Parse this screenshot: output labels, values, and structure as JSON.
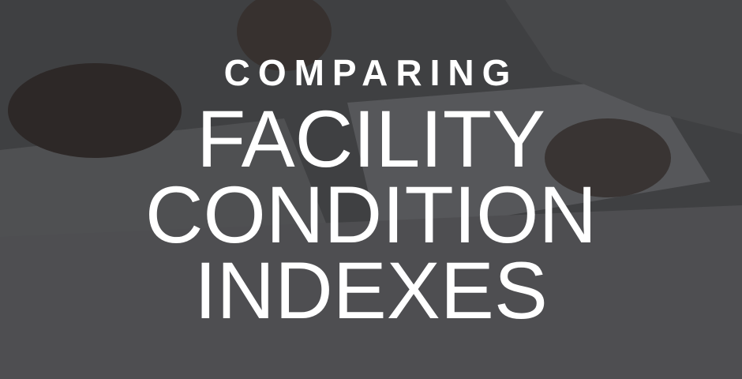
{
  "hero": {
    "kicker": "COMPARING",
    "title_lines": [
      "FACILITY",
      "CONDITION",
      "INDEXES"
    ]
  }
}
